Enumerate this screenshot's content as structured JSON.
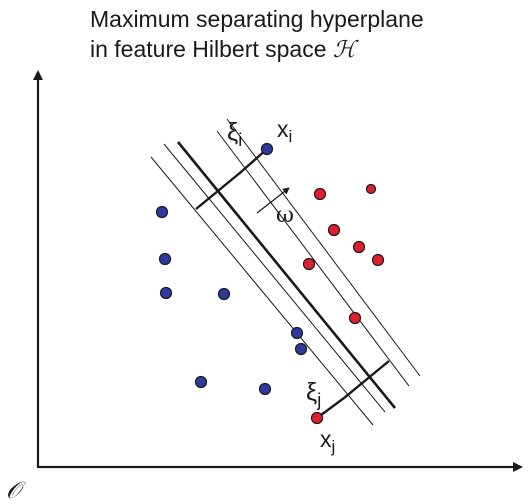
{
  "title": {
    "line1": "Maximum separating hyperplane",
    "line2": "in feature Hilbert space",
    "space_symbol": "ℋ"
  },
  "labels": {
    "origin": "𝒪",
    "xi_i": "ξi",
    "x_i": "xi",
    "omega": "ω",
    "xi_j": "ξj",
    "x_j": "xj"
  },
  "colors": {
    "class_a": "#2b3a9c",
    "class_b": "#e01f2d",
    "stroke": "#1a1a1a"
  }
}
